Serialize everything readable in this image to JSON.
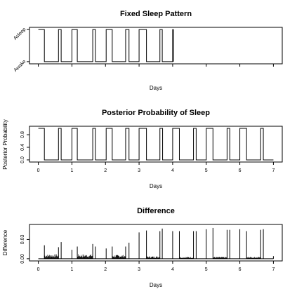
{
  "chart_data": [
    {
      "type": "line",
      "title": "Fixed Sleep Pattern",
      "xlabel": "Days",
      "ylabel": "",
      "xlim": [
        0,
        7
      ],
      "ylim": [
        0,
        1
      ],
      "xticks": [
        0,
        1,
        2,
        3,
        4,
        5,
        6,
        7
      ],
      "x_ticklabels_shown": false,
      "yticks": [
        0,
        1
      ],
      "y_ticklabels": [
        "Awake",
        "Asleep"
      ],
      "series": [
        {
          "steps": [
            [
              0.0,
              1
            ],
            [
              0.18,
              0
            ],
            [
              0.6,
              1
            ],
            [
              0.68,
              0
            ],
            [
              1.0,
              1
            ],
            [
              1.16,
              0
            ],
            [
              1.62,
              1
            ],
            [
              1.7,
              0
            ],
            [
              2.02,
              1
            ],
            [
              2.2,
              0
            ],
            [
              2.6,
              1
            ],
            [
              2.7,
              0
            ],
            [
              3.0,
              1
            ],
            [
              3.22,
              0
            ],
            [
              3.62,
              1
            ],
            [
              3.69,
              0
            ],
            [
              4.0,
              1
            ],
            [
              4.02,
              0
            ]
          ],
          "end_x": 4.02
        }
      ]
    },
    {
      "type": "line",
      "title": "Posterior Probability of Sleep",
      "xlabel": "Days",
      "ylabel": "Posterior Probability",
      "xlim": [
        0,
        7
      ],
      "ylim": [
        0,
        1
      ],
      "xticks": [
        0,
        1,
        2,
        3,
        4,
        5,
        6,
        7
      ],
      "yticks": [
        0.0,
        0.4,
        0.8
      ],
      "y_ticklabels": [
        "0.0",
        "0.4",
        "0.8"
      ],
      "series": [
        {
          "steps": [
            [
              0.0,
              1
            ],
            [
              0.18,
              0
            ],
            [
              0.6,
              1
            ],
            [
              0.68,
              0
            ],
            [
              1.0,
              1
            ],
            [
              1.16,
              0
            ],
            [
              1.62,
              1
            ],
            [
              1.7,
              0
            ],
            [
              2.02,
              1
            ],
            [
              2.2,
              0
            ],
            [
              2.6,
              1
            ],
            [
              2.7,
              0
            ],
            [
              3.0,
              1
            ],
            [
              3.22,
              0
            ],
            [
              3.62,
              1
            ],
            [
              3.7,
              0
            ],
            [
              4.0,
              1
            ],
            [
              4.2,
              0
            ],
            [
              4.62,
              1
            ],
            [
              4.7,
              0
            ],
            [
              5.0,
              1
            ],
            [
              5.2,
              0
            ],
            [
              5.62,
              1
            ],
            [
              5.7,
              0
            ],
            [
              6.0,
              1
            ],
            [
              6.2,
              0
            ],
            [
              6.62,
              1
            ],
            [
              6.7,
              0
            ]
          ],
          "end_x": 7.0
        }
      ]
    },
    {
      "type": "line",
      "title": "Difference",
      "xlabel": "Days",
      "ylabel": "Difference",
      "xlim": [
        0,
        7
      ],
      "ylim": [
        0,
        0.05
      ],
      "xticks": [
        0,
        1,
        2,
        3,
        4,
        5,
        6,
        7
      ],
      "yticks": [
        0.0,
        0.03
      ],
      "y_ticklabels": [
        "0.00",
        "0.03"
      ],
      "series": [
        {
          "spikes": [
            [
              0.18,
              0.021
            ],
            [
              0.6,
              0.018
            ],
            [
              0.68,
              0.026
            ],
            [
              1.0,
              0.014
            ],
            [
              1.16,
              0.019
            ],
            [
              1.62,
              0.023
            ],
            [
              1.7,
              0.019
            ],
            [
              2.02,
              0.016
            ],
            [
              2.2,
              0.019
            ],
            [
              2.6,
              0.019
            ],
            [
              2.7,
              0.025
            ],
            [
              3.0,
              0.041
            ],
            [
              3.22,
              0.044
            ],
            [
              3.62,
              0.043
            ],
            [
              3.69,
              0.047
            ],
            [
              4.0,
              0.043
            ],
            [
              4.2,
              0.043
            ],
            [
              4.62,
              0.043
            ],
            [
              4.7,
              0.043
            ],
            [
              5.0,
              0.046
            ],
            [
              5.2,
              0.048
            ],
            [
              5.62,
              0.045
            ],
            [
              5.7,
              0.045
            ],
            [
              6.0,
              0.046
            ],
            [
              6.2,
              0.043
            ],
            [
              6.62,
              0.045
            ],
            [
              6.7,
              0.046
            ],
            [
              7.0,
              0.004
            ]
          ],
          "noise_bands": [
            [
              0.18,
              0.6,
              0.007
            ],
            [
              1.16,
              1.62,
              0.007
            ],
            [
              2.2,
              2.6,
              0.006
            ],
            [
              3.22,
              3.62,
              0.004
            ],
            [
              4.2,
              4.62,
              0.003
            ],
            [
              5.2,
              5.62,
              0.003
            ],
            [
              6.2,
              6.62,
              0.003
            ]
          ]
        }
      ]
    }
  ]
}
